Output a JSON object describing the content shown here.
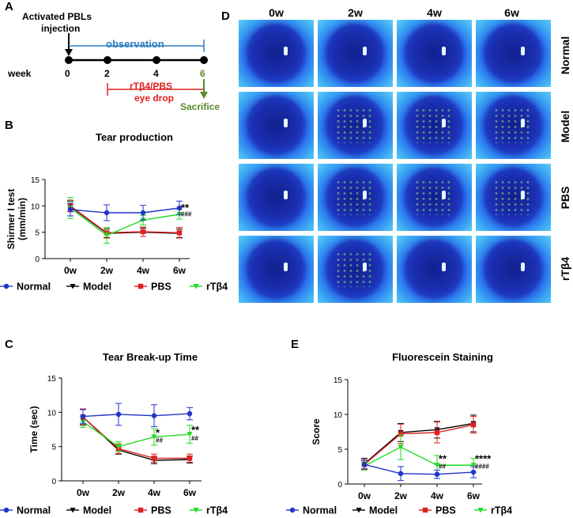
{
  "panelA": {
    "letter": "A",
    "injection_line1": "Activated PBLs",
    "injection_line2": "injection",
    "observation": "observation",
    "week_label": "week",
    "week_ticks": [
      "0",
      "2",
      "4",
      "6"
    ],
    "treatment_line1": "rTβ4/PBS",
    "treatment_line2": "eye drop",
    "sacrifice": "Sacrifice",
    "colors": {
      "observation": "#2f7fc1",
      "treatment": "#e02020",
      "sacrifice": "#5a8a2a"
    }
  },
  "panelD": {
    "letter": "D",
    "columns": [
      "0w",
      "2w",
      "4w",
      "6w"
    ],
    "rows": [
      "Normal",
      "Model",
      "PBS",
      "rTβ4"
    ],
    "stained_cells": [
      [
        0,
        0,
        0,
        0
      ],
      [
        0,
        1,
        1,
        1
      ],
      [
        0,
        1,
        1,
        1
      ],
      [
        0,
        1,
        0,
        0
      ]
    ]
  },
  "legend_items": [
    {
      "name": "Normal",
      "color": "#2233cc",
      "marker": "circle"
    },
    {
      "name": "Model",
      "color": "#000000",
      "marker": "triangle"
    },
    {
      "name": "PBS",
      "color": "#e02020",
      "marker": "square"
    },
    {
      "name": "rTβ4",
      "color": "#22dd22",
      "marker": "triangle"
    }
  ],
  "chart_data": [
    {
      "panel": "B",
      "type": "line",
      "title": "Tear production",
      "ylabel_line1": "Shirmer I test",
      "ylabel_line2": "(mm/min)",
      "xlabel": "",
      "categories": [
        "0w",
        "2w",
        "4w",
        "6w"
      ],
      "ylim": [
        0,
        15
      ],
      "yticks": [
        0,
        5,
        10,
        15
      ],
      "series": [
        {
          "name": "Normal",
          "values": [
            9.3,
            8.7,
            8.7,
            9.6
          ],
          "errors": [
            1.2,
            1.5,
            1.4,
            1.3
          ]
        },
        {
          "name": "Model",
          "values": [
            9.9,
            4.8,
            5.0,
            4.8
          ],
          "errors": [
            1.0,
            0.8,
            0.8,
            0.8
          ]
        },
        {
          "name": "PBS",
          "values": [
            10.0,
            4.9,
            5.1,
            4.9
          ],
          "errors": [
            1.1,
            1.0,
            0.9,
            1.0
          ]
        },
        {
          "name": "rTβ4",
          "values": [
            9.6,
            4.4,
            7.3,
            8.4
          ],
          "errors": [
            2.0,
            1.5,
            0.9,
            0.9
          ]
        }
      ],
      "annotations": [
        {
          "category": "6w",
          "text": "**",
          "value": 9.0
        },
        {
          "category": "6w",
          "text": "###",
          "value": 8.0
        }
      ]
    },
    {
      "panel": "C",
      "type": "line",
      "title": "Tear Break-up Time",
      "ylabel_line1": "Time (sec)",
      "ylabel_line2": "",
      "xlabel": "",
      "categories": [
        "0w",
        "2w",
        "4w",
        "6w"
      ],
      "ylim": [
        0,
        15
      ],
      "yticks": [
        0,
        5,
        10,
        15
      ],
      "series": [
        {
          "name": "Normal",
          "values": [
            9.4,
            9.7,
            9.5,
            9.8
          ],
          "errors": [
            1.0,
            1.6,
            1.6,
            0.9
          ]
        },
        {
          "name": "Model",
          "values": [
            9.3,
            4.5,
            3.0,
            3.1
          ],
          "errors": [
            1.1,
            0.6,
            0.5,
            0.5
          ]
        },
        {
          "name": "PBS",
          "values": [
            9.3,
            4.7,
            3.3,
            3.3
          ],
          "errors": [
            1.2,
            0.7,
            0.6,
            0.6
          ]
        },
        {
          "name": "rTβ4",
          "values": [
            8.6,
            5.0,
            6.4,
            6.8
          ],
          "errors": [
            0.8,
            0.7,
            1.2,
            1.3
          ]
        }
      ],
      "annotations": [
        {
          "category": "4w",
          "text": "*",
          "value": 6.5
        },
        {
          "category": "4w",
          "text": "##",
          "value": 5.6
        },
        {
          "category": "6w",
          "text": "**",
          "value": 6.9
        },
        {
          "category": "6w",
          "text": "##",
          "value": 5.9
        }
      ]
    },
    {
      "panel": "E",
      "type": "line",
      "title": "Fluorescein Staining",
      "ylabel_line1": "Score",
      "ylabel_line2": "",
      "xlabel": "",
      "categories": [
        "0w",
        "2w",
        "4w",
        "6w"
      ],
      "ylim": [
        0,
        15
      ],
      "yticks": [
        0,
        5,
        10,
        15
      ],
      "series": [
        {
          "name": "Normal",
          "values": [
            2.8,
            1.5,
            1.4,
            1.7
          ],
          "errors": [
            0.6,
            1.0,
            0.6,
            0.8
          ]
        },
        {
          "name": "Model",
          "values": [
            2.9,
            7.4,
            7.8,
            8.7
          ],
          "errors": [
            0.8,
            1.3,
            1.2,
            1.2
          ]
        },
        {
          "name": "PBS",
          "values": [
            2.8,
            7.2,
            7.4,
            8.5
          ],
          "errors": [
            0.7,
            1.4,
            1.5,
            1.2
          ]
        },
        {
          "name": "rTβ4",
          "values": [
            2.6,
            5.3,
            2.7,
            2.7
          ],
          "errors": [
            0.6,
            1.8,
            1.4,
            1.0
          ]
        }
      ],
      "annotations": [
        {
          "category": "4w",
          "text": "**",
          "value": 3.1
        },
        {
          "category": "4w",
          "text": "##",
          "value": 2.2
        },
        {
          "category": "6w",
          "text": "****",
          "value": 3.1
        },
        {
          "category": "6w",
          "text": "####",
          "value": 2.2
        }
      ]
    }
  ]
}
